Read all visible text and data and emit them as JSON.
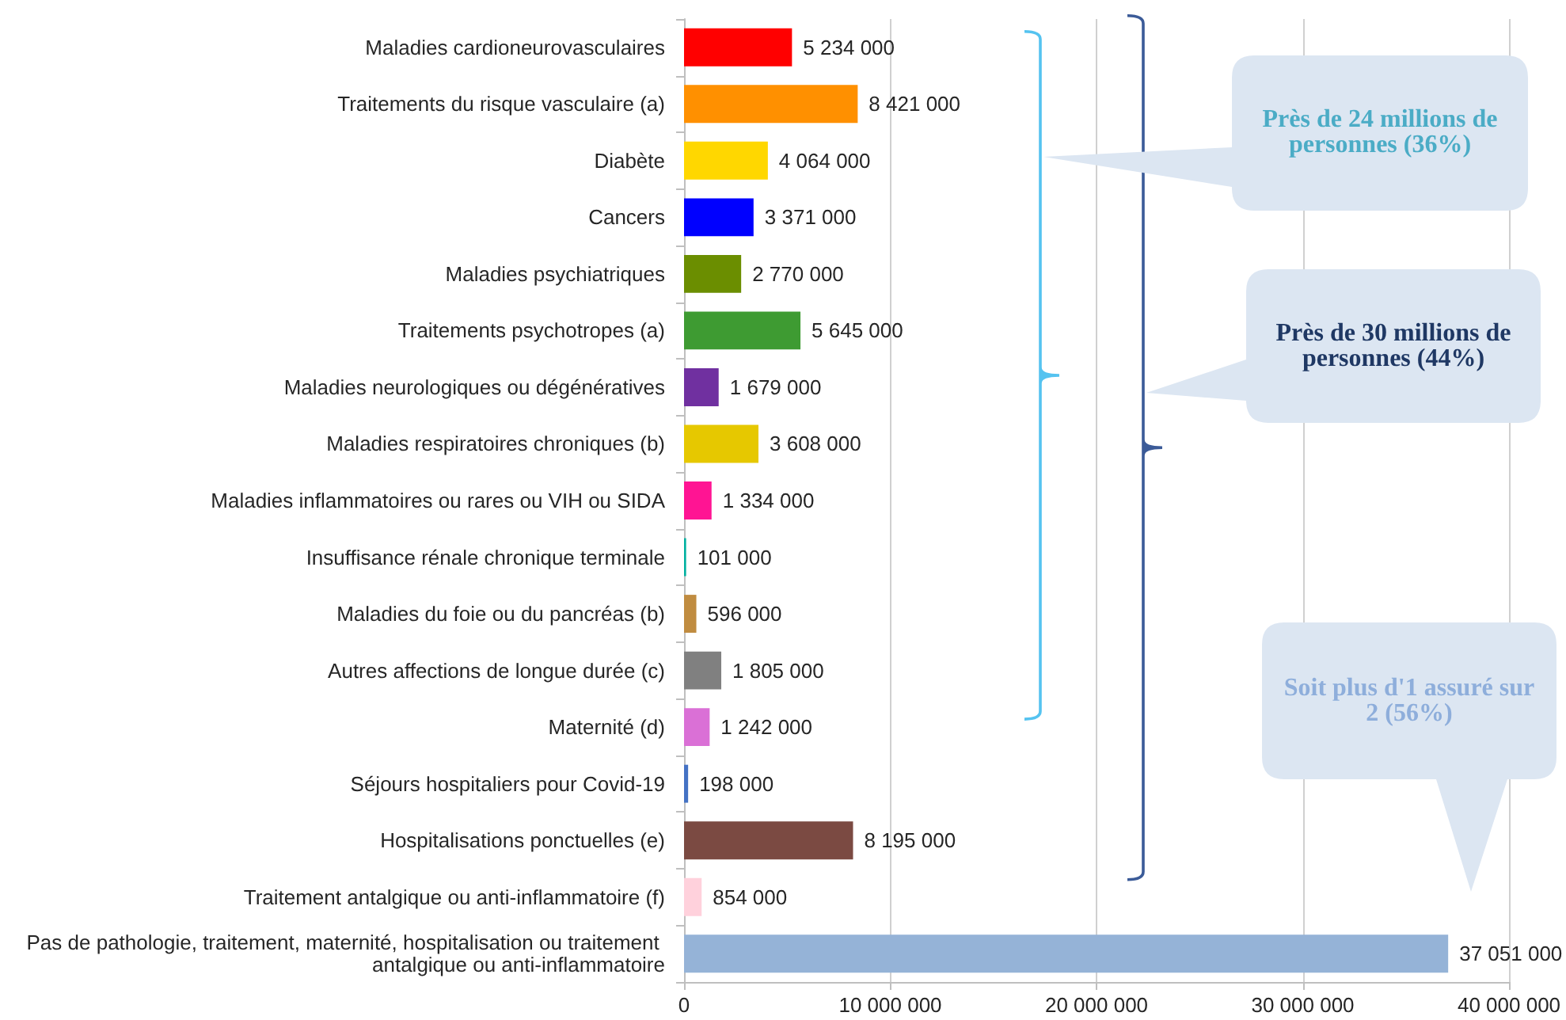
{
  "chart_data": {
    "type": "bar",
    "orientation": "horizontal",
    "categories": [
      "Maladies cardioneurovasculaires",
      "Traitements du risque vasculaire (a)",
      "Diabète",
      "Cancers",
      "Maladies psychiatriques",
      "Traitements psychotropes (a)",
      "Maladies neurologiques ou dégénératives",
      "Maladies respiratoires chroniques (b)",
      "Maladies inflammatoires ou rares ou VIH ou SIDA",
      "Insuffisance rénale chronique terminale",
      "Maladies du foie ou du pancréas (b)",
      "Autres affections de longue durée (c)",
      "Maternité (d)",
      "Séjours hospitaliers pour Covid-19",
      "Hospitalisations ponctuelles (e)",
      "Traitement antalgique ou anti-inflammatoire (f)",
      "Pas de pathologie, traitement, maternité, hospitalisation ou traitement antalgique ou anti-inflammatoire"
    ],
    "values": [
      5234000,
      8421000,
      4064000,
      3371000,
      2770000,
      5645000,
      1679000,
      3608000,
      1334000,
      101000,
      596000,
      1805000,
      1242000,
      198000,
      8195000,
      854000,
      37051000
    ],
    "colors": [
      "#ff0000",
      "#ff9000",
      "#ffd700",
      "#0000ff",
      "#6b8e00",
      "#3e9b32",
      "#7030a0",
      "#e6c800",
      "#ff1493",
      "#00b0a0",
      "#c08c40",
      "#808080",
      "#da70d6",
      "#4472c4",
      "#7b4a42",
      "#ffd1dc",
      "#95b3d7"
    ],
    "value_labels": [
      "5 234 000",
      "8 421 000",
      "4 064 000",
      "3 371 000",
      "2 770 000",
      "5 645 000",
      "1 679 000",
      "3 608 000",
      "1 334 000",
      "101 000",
      "596 000",
      "1 805 000",
      "1 242 000",
      "198 000",
      "8 195 000",
      "854 000",
      "37 051 000"
    ],
    "xlim": [
      0,
      40000000
    ],
    "xticks": [
      0,
      {
        "value": 10000000,
        "label": "10 000 000"
      },
      {
        "value": 20000000,
        "label": "20 000 000"
      },
      {
        "value": 30000000,
        "label": "30 000 000"
      },
      {
        "value": 40000000,
        "label": "40 000 000"
      }
    ],
    "grid": "x",
    "annotations": [
      "Près de 24 millions de personnes (36%)",
      "Près de 30 millions de personnes (44%)",
      "Soit plus d'1 assuré sur 2 (56%)"
    ]
  }
}
